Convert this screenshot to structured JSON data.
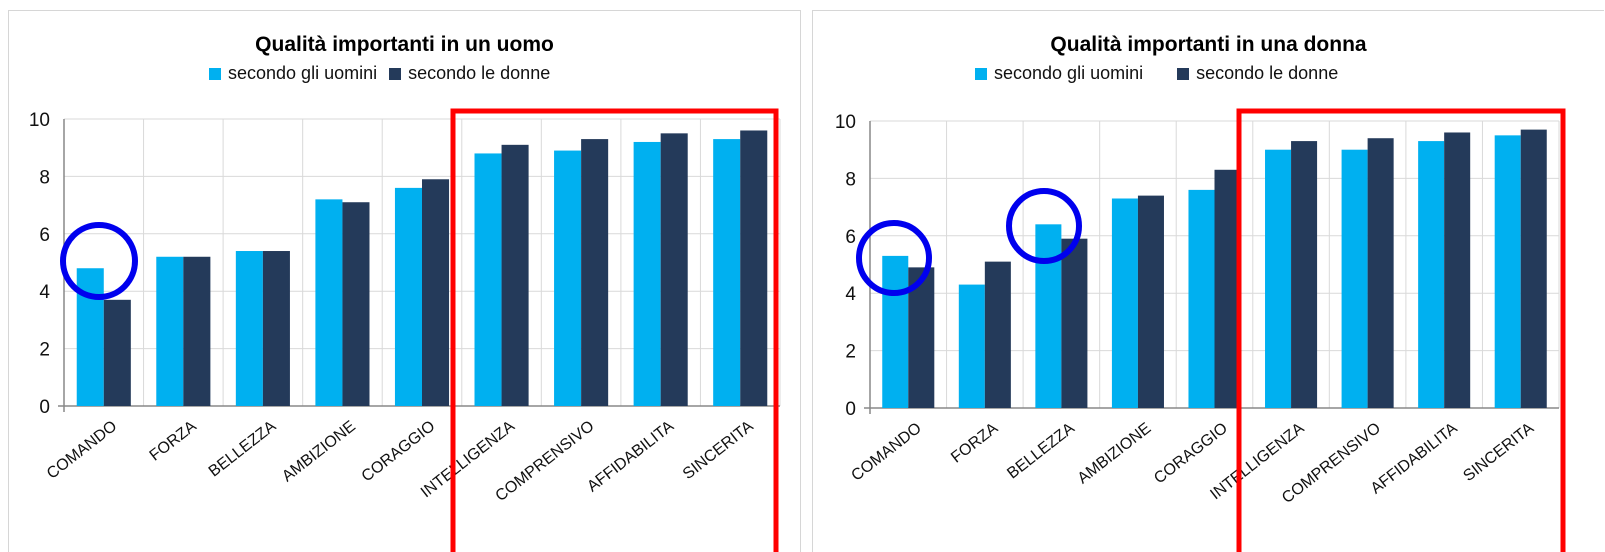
{
  "colors": {
    "series_men": "#00b0f0",
    "series_women": "#243a5a",
    "highlight_rect": "#ff0000",
    "highlight_circle": "#0000ee",
    "grid": "#d9d9d9",
    "axis": "#888888"
  },
  "chart_data": [
    {
      "type": "bar",
      "title": "Qualità importanti in un uomo",
      "categories": [
        "COMANDO",
        "FORZA",
        "BELLEZZA",
        "AMBIZIONE",
        "CORAGGIO",
        "INTELLIGENZA",
        "COMPRENSIVO",
        "AFFIDABILITA",
        "SINCERITA"
      ],
      "series": [
        {
          "name": "secondo gli uomini",
          "values": [
            4.8,
            5.2,
            5.4,
            7.2,
            7.6,
            8.8,
            8.9,
            9.2,
            9.3
          ]
        },
        {
          "name": "secondo le donne",
          "values": [
            3.7,
            5.2,
            5.4,
            7.1,
            7.9,
            9.1,
            9.3,
            9.5,
            9.6
          ]
        }
      ],
      "ylim": [
        0,
        10
      ],
      "yticks": [
        "0",
        "2",
        "4",
        "6",
        "8",
        "10"
      ],
      "grid": true,
      "legend_position": "top",
      "highlight_box_categories": [
        "INTELLIGENZA",
        "COMPRENSIVO",
        "AFFIDABILITA",
        "SINCERITA"
      ],
      "highlight_circle_categories": [
        "COMANDO"
      ]
    },
    {
      "type": "bar",
      "title": "Qualità importanti in una donna",
      "categories": [
        "COMANDO",
        "FORZA",
        "BELLEZZA",
        "AMBIZIONE",
        "CORAGGIO",
        "INTELLIGENZA",
        "COMPRENSIVO",
        "AFFIDABILITA",
        "SINCERITA"
      ],
      "series": [
        {
          "name": "secondo gli uomini",
          "values": [
            5.3,
            4.3,
            6.4,
            7.3,
            7.6,
            9.0,
            9.0,
            9.3,
            9.5
          ]
        },
        {
          "name": "secondo le donne",
          "values": [
            4.9,
            5.1,
            5.9,
            7.4,
            8.3,
            9.3,
            9.4,
            9.6,
            9.7
          ]
        }
      ],
      "ylim": [
        0,
        10
      ],
      "yticks": [
        "0",
        "2",
        "4",
        "6",
        "8",
        "10"
      ],
      "grid": true,
      "legend_position": "top",
      "highlight_box_categories": [
        "INTELLIGENZA",
        "COMPRENSIVO",
        "AFFIDABILITA",
        "SINCERITA"
      ],
      "highlight_circle_categories": [
        "COMANDO",
        "BELLEZZA"
      ]
    }
  ]
}
